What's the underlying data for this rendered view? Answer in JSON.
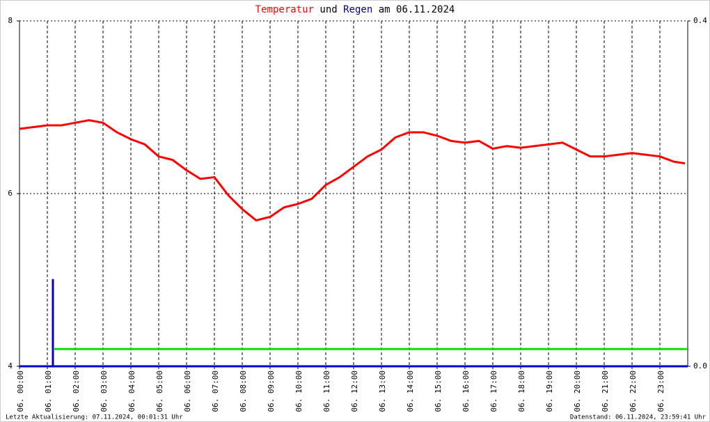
{
  "chart_data": {
    "type": "line",
    "title_words": [
      "und",
      "am 06.11.2024"
    ],
    "footer_left": "Letzte Aktualisierung: 07.11.2024, 00:01:31 Uhr",
    "footer_right": "Datenstand: 06.11.2024, 23:59:41 Uhr",
    "xlim": [
      0,
      24
    ],
    "xticks": [
      {
        "value": 0,
        "label": "06. 00:00"
      },
      {
        "value": 1,
        "label": "06. 01:00"
      },
      {
        "value": 2,
        "label": "06. 02:00"
      },
      {
        "value": 3,
        "label": "06. 03:00"
      },
      {
        "value": 4,
        "label": "06. 04:00"
      },
      {
        "value": 5,
        "label": "06. 05:00"
      },
      {
        "value": 6,
        "label": "06. 06:00"
      },
      {
        "value": 7,
        "label": "06. 07:00"
      },
      {
        "value": 8,
        "label": "06. 08:00"
      },
      {
        "value": 9,
        "label": "06. 09:00"
      },
      {
        "value": 10,
        "label": "06. 10:00"
      },
      {
        "value": 11,
        "label": "06. 11:00"
      },
      {
        "value": 12,
        "label": "06. 12:00"
      },
      {
        "value": 13,
        "label": "06. 13:00"
      },
      {
        "value": 14,
        "label": "06. 14:00"
      },
      {
        "value": 15,
        "label": "06. 15:00"
      },
      {
        "value": 16,
        "label": "06. 16:00"
      },
      {
        "value": 17,
        "label": "06. 17:00"
      },
      {
        "value": 18,
        "label": "06. 18:00"
      },
      {
        "value": 19,
        "label": "06. 19:00"
      },
      {
        "value": 20,
        "label": "06. 20:00"
      },
      {
        "value": 21,
        "label": "06. 21:00"
      },
      {
        "value": 22,
        "label": "06. 22:00"
      },
      {
        "value": 23,
        "label": "06. 23:00"
      }
    ],
    "ylim": [
      4,
      8
    ],
    "yticks": [
      4,
      6,
      8
    ],
    "y2lim": [
      0,
      0.4
    ],
    "y2ticks": [
      {
        "value": 0,
        "label": "0.0"
      },
      0.4
    ],
    "grid": true,
    "series": [
      {
        "name": "Temperatur",
        "color": "#ff0000",
        "x": [
          0,
          0.5,
          1,
          1.5,
          2,
          2.5,
          3,
          3.5,
          4,
          4.5,
          5,
          5.5,
          6,
          6.5,
          7,
          7.5,
          8,
          8.5,
          9,
          9.5,
          10,
          10.5,
          11,
          11.5,
          12,
          12.5,
          13,
          13.5,
          14,
          14.5,
          15,
          15.5,
          16,
          16.5,
          17,
          17.5,
          18,
          18.5,
          19,
          19.5,
          20,
          20.5,
          21,
          21.5,
          22,
          22.5,
          23,
          23.5,
          23.9
        ],
        "values": [
          6.75,
          6.77,
          6.79,
          6.79,
          6.82,
          6.85,
          6.82,
          6.71,
          6.63,
          6.57,
          6.43,
          6.39,
          6.27,
          6.17,
          6.19,
          5.98,
          5.82,
          5.69,
          5.73,
          5.84,
          5.88,
          5.94,
          6.1,
          6.19,
          6.31,
          6.43,
          6.51,
          6.65,
          6.71,
          6.71,
          6.67,
          6.61,
          6.59,
          6.61,
          6.52,
          6.55,
          6.53,
          6.55,
          6.57,
          6.59,
          6.51,
          6.43,
          6.43,
          6.45,
          6.47,
          6.45,
          6.43,
          6.37,
          6.35
        ]
      },
      {
        "name": "Regen",
        "color": "#0000cc",
        "axis": "y2",
        "x": [
          0,
          1.2,
          1.2,
          1.2,
          24
        ],
        "values": [
          0,
          0,
          0.1,
          0,
          0
        ]
      },
      {
        "color": "#00e000",
        "axis": "y2",
        "x": [
          1.25,
          24
        ],
        "values": [
          0.02,
          0.02
        ]
      }
    ]
  }
}
